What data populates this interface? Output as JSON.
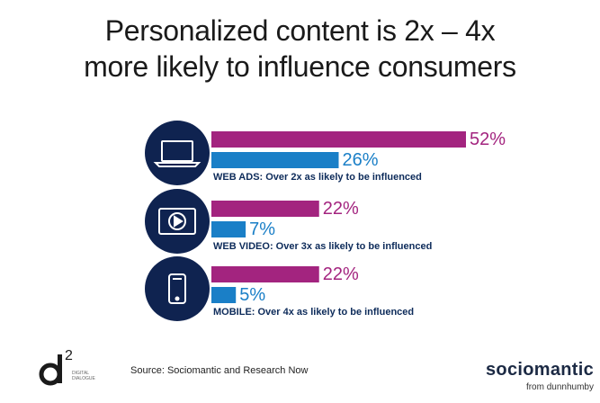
{
  "title": {
    "line1": "Personalized content is 2x – 4x",
    "line2": "more likely to influence consumers"
  },
  "chart_data": {
    "type": "bar",
    "orientation": "horizontal",
    "categories": [
      "WEB ADS",
      "WEB VIDEO",
      "MOBILE"
    ],
    "captions": [
      "WEB ADS: Over 2x as likely to be influenced",
      "WEB VIDEO: Over 3x as likely to be influenced",
      "MOBILE: Over 4x as likely to be influenced"
    ],
    "icons": [
      "laptop-icon",
      "video-player-icon",
      "smartphone-icon"
    ],
    "series": [
      {
        "values": [
          52,
          22,
          22
        ],
        "labels": [
          "52%",
          "22%",
          "22%"
        ],
        "color": "#a3247f"
      },
      {
        "values": [
          26,
          7,
          5
        ],
        "labels": [
          "26%",
          "7%",
          "5%"
        ],
        "color": "#1a7fc7"
      }
    ],
    "xlim": [
      0,
      52
    ],
    "grid": false
  },
  "colors": {
    "icon_circle": "#0f2350",
    "caption": "#0d2b5a"
  },
  "footer": {
    "source": "Source:  Sociomantic and Research Now",
    "logo_left_text": "2",
    "logo_left_sub1": "DIGITAL",
    "logo_left_sub2": "DIALOGUE",
    "brand": "sociomantic",
    "brand_sub": "from dunnhumby"
  }
}
